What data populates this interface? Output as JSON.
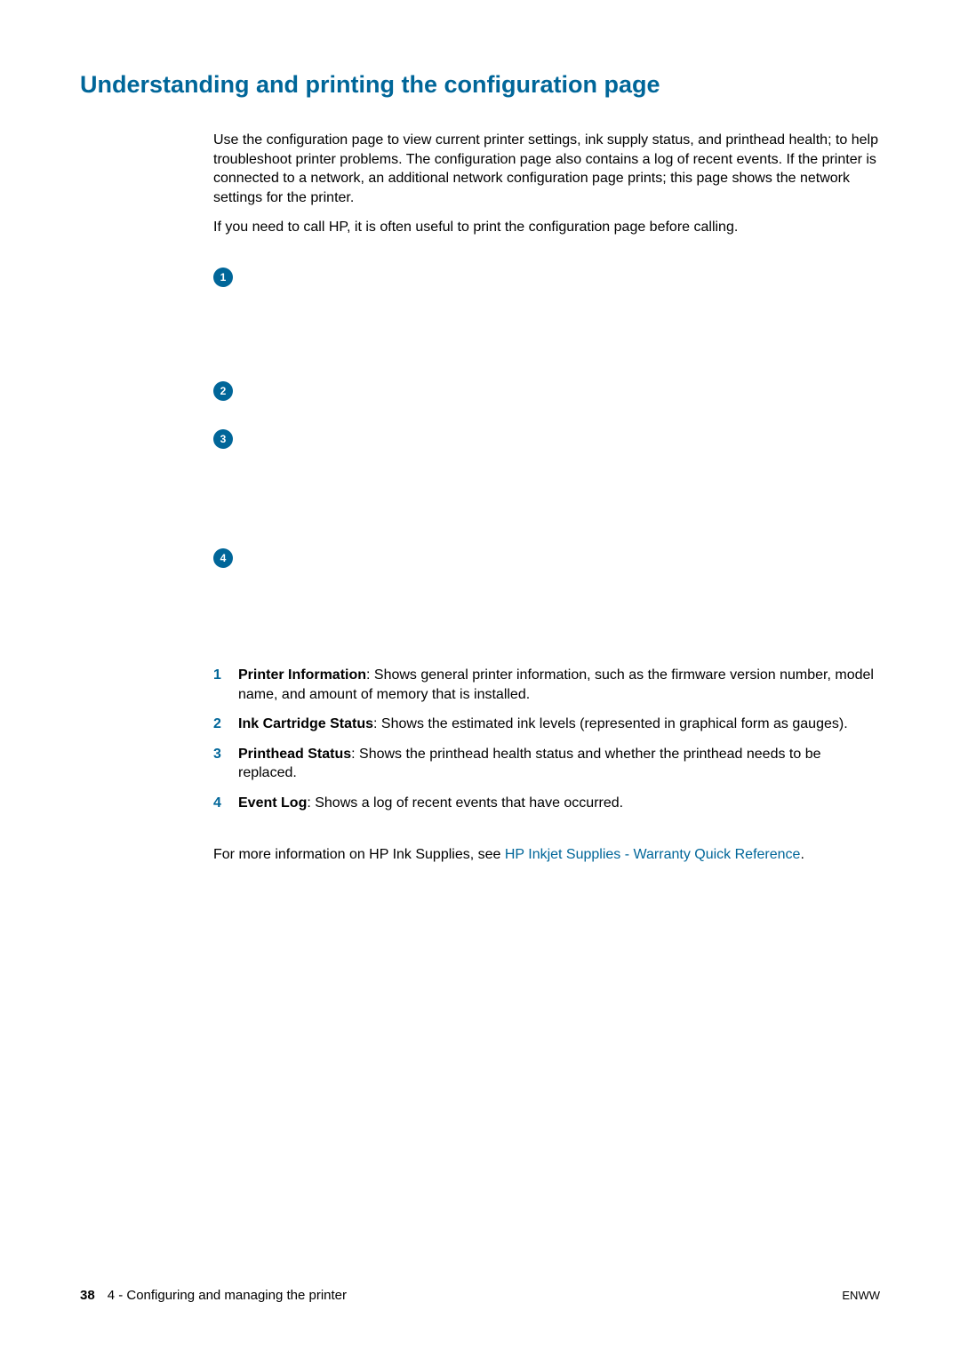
{
  "colors": {
    "accent": "#006699",
    "text": "#000000",
    "background": "#ffffff"
  },
  "typography": {
    "body_fontsize": 16,
    "heading_fontsize": 27,
    "footer_fontsize": 15
  },
  "heading": "Understanding and printing the configuration page",
  "paragraphs": {
    "p1": "Use the configuration page to view current printer settings, ink supply status, and printhead health; to help troubleshoot printer problems. The configuration page also contains a log of recent events. If the printer is connected to a network, an additional network configuration page prints; this page shows the network settings for the printer.",
    "p2": "If you need to call HP, it is often useful to print the configuration page before calling."
  },
  "callout_badges": [
    "1",
    "2",
    "3",
    "4"
  ],
  "list": [
    {
      "index": "1",
      "title": "Printer Information",
      "desc": ": Shows general printer information, such as the firmware version number, model name, and amount of memory that is installed."
    },
    {
      "index": "2",
      "title": "Ink Cartridge Status",
      "desc": ": Shows the estimated ink levels (represented in graphical form as gauges)."
    },
    {
      "index": "3",
      "title": "Printhead Status",
      "desc": ": Shows the printhead health status and whether the printhead needs to be replaced."
    },
    {
      "index": "4",
      "title": "Event Log",
      "desc": ": Shows a log of recent events that have occurred."
    }
  ],
  "more_info": {
    "prefix": "For more information on HP Ink Supplies, see ",
    "link_text": "HP Inkjet Supplies - Warranty Quick Reference",
    "suffix": "."
  },
  "footer": {
    "page_number": "38",
    "section": "4 - Configuring and managing the printer",
    "right": "ENWW"
  }
}
